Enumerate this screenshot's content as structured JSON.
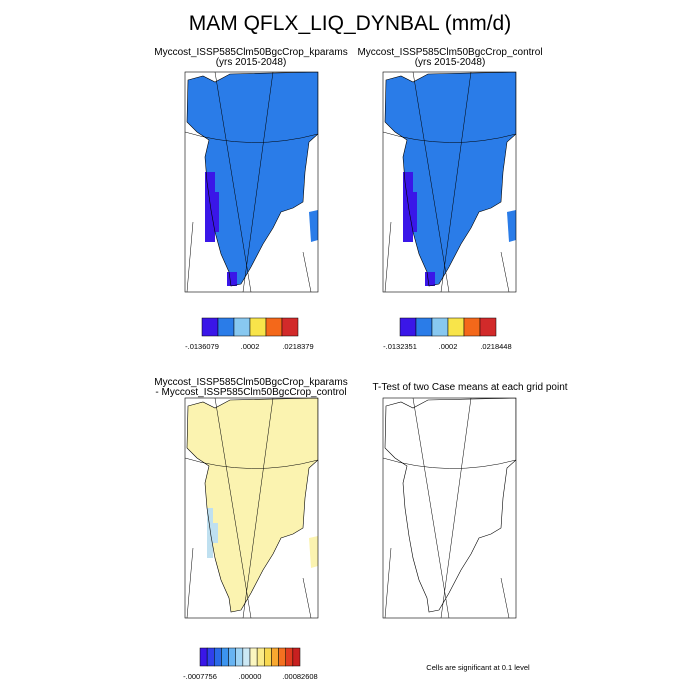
{
  "title": "MAM QFLX_LIQ_DYNBAL (mm/d)",
  "panels": [
    {
      "title": "Myccost_ISSP585Clm50BgcCrop_kparams",
      "subtitle": "(yrs 2015-2048)",
      "colorbar": {
        "colors": [
          "#3a16e8",
          "#2a7ce8",
          "#88c8f0",
          "#f8e44a",
          "#f4681a",
          "#d22a2a"
        ],
        "labels": [
          "-.0136079",
          ".0002",
          ".0218379"
        ]
      }
    },
    {
      "title": "Myccost_ISSP585Clm50BgcCrop_control",
      "subtitle": "(yrs 2015-2048)",
      "colorbar": {
        "colors": [
          "#3a16e8",
          "#2a7ce8",
          "#88c8f0",
          "#f8e44a",
          "#f4681a",
          "#d22a2a"
        ],
        "labels": [
          "-.0132351",
          ".0002",
          ".0218448"
        ]
      }
    },
    {
      "title": "Myccost_ISSP585Clm50BgcCrop_kparams",
      "subtitle": " - Myccost_ISSP585Clm50BgcCrop_control",
      "colorbar": {
        "colors": [
          "#3a16e8",
          "#3040ec",
          "#2a6ae8",
          "#3c94ee",
          "#68b4f2",
          "#a0d4f4",
          "#cce8f4",
          "#fbf6c0",
          "#fbeb8a",
          "#f8d850",
          "#f8a830",
          "#f47020",
          "#e03c20",
          "#c82020"
        ],
        "labels": [
          "-.0007756",
          ".00000",
          ".00082608"
        ]
      }
    },
    {
      "title": "T-Test of two Case means at each grid point",
      "note": "Cells are significant at 0.1 level"
    }
  ]
}
